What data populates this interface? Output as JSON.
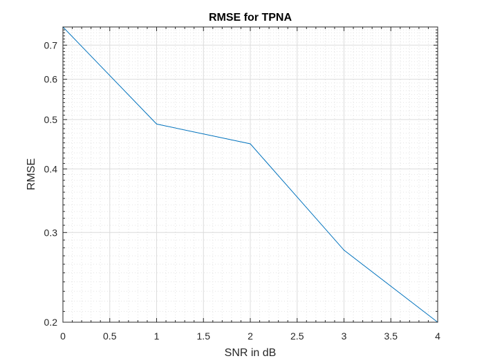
{
  "chart_data": {
    "type": "line",
    "title": "RMSE for TPNA",
    "xlabel": "SNR in dB",
    "ylabel": "RMSE",
    "xlim": [
      0,
      4
    ],
    "ylim": [
      0.2,
      0.76
    ],
    "y_scale": "log",
    "grid": "on (major and minor)",
    "x_ticks": [
      0,
      0.5,
      1,
      1.5,
      2,
      2.5,
      3,
      3.5,
      4
    ],
    "x_tick_labels": [
      "0",
      "0.5",
      "1",
      "1.5",
      "2",
      "2.5",
      "3",
      "3.5",
      "4"
    ],
    "y_ticks": [
      0.2,
      0.3,
      0.4,
      0.5,
      0.6,
      0.7
    ],
    "y_tick_labels": [
      "0.2",
      "0.3",
      "0.4",
      "0.5",
      "0.6",
      "0.7"
    ],
    "series": [
      {
        "color": "#0072bd",
        "x": [
          0,
          1,
          2,
          3,
          4
        ],
        "values": [
          0.76,
          0.49,
          0.448,
          0.277,
          0.2
        ]
      }
    ]
  }
}
